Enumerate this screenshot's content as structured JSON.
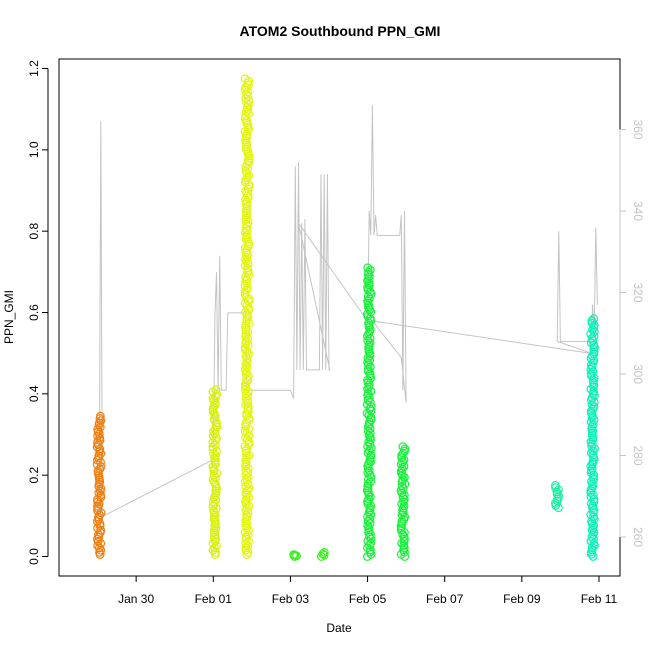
{
  "chart_data": {
    "type": "scatter",
    "title": "ATOM2 Southbound PPN_GMI",
    "xlabel": "Date",
    "ylabel": "PPN_GMI",
    "ylim": [
      0,
      1.2
    ],
    "y2lim": [
      250,
      375
    ],
    "x_start": "2019-01-28",
    "x_end": "2019-02-11",
    "x_ticks": [
      {
        "date": "2019-01-30",
        "label": "Jan 30"
      },
      {
        "date": "2019-02-01",
        "label": "Feb 01"
      },
      {
        "date": "2019-02-03",
        "label": "Feb 03"
      },
      {
        "date": "2019-02-05",
        "label": "Feb 05"
      },
      {
        "date": "2019-02-07",
        "label": "Feb 07"
      },
      {
        "date": "2019-02-09",
        "label": "Feb 09"
      },
      {
        "date": "2019-02-11",
        "label": "Feb 11"
      }
    ],
    "y_ticks": [
      {
        "value": 0.0,
        "label": "0.0"
      },
      {
        "value": 0.2,
        "label": "0.2"
      },
      {
        "value": 0.4,
        "label": "0.4"
      },
      {
        "value": 0.6,
        "label": "0.6"
      },
      {
        "value": 0.8,
        "label": "0.8"
      },
      {
        "value": 1.0,
        "label": "1.0"
      },
      {
        "value": 1.2,
        "label": "1.2"
      }
    ],
    "y2_ticks": [
      {
        "value": 260,
        "label": "260"
      },
      {
        "value": 280,
        "label": "280"
      },
      {
        "value": 300,
        "label": "300"
      },
      {
        "value": 320,
        "label": "320"
      },
      {
        "value": 340,
        "label": "340"
      },
      {
        "value": 360,
        "label": "360"
      }
    ],
    "grid": false,
    "clusters": [
      {
        "date": "2019-01-29T01:00",
        "ymin": 0.005,
        "ymax": 0.345,
        "color": "#F07D0E"
      },
      {
        "date": "2019-02-01T01:00",
        "ymin": 0.005,
        "ymax": 0.41,
        "color": "#D7F00E"
      },
      {
        "date": "2019-02-01T21:00",
        "ymin": 0.005,
        "ymax": 1.175,
        "color": "#E2F50E"
      },
      {
        "date": "2019-02-03T03:00",
        "ymin": 0.0,
        "ymax": 0.005,
        "color": "#3AF01E"
      },
      {
        "date": "2019-02-03T20:00",
        "ymin": 0.0,
        "ymax": 0.01,
        "color": "#3AF01E"
      },
      {
        "date": "2019-02-05T01:00",
        "ymin": 0.0,
        "ymax": 0.71,
        "color": "#18F03A"
      },
      {
        "date": "2019-02-05T22:00",
        "ymin": 0.0,
        "ymax": 0.27,
        "color": "#18F03A"
      },
      {
        "date": "2019-02-09T22:00",
        "ymin": 0.12,
        "ymax": 0.175,
        "color": "#18F0A0"
      },
      {
        "date": "2019-02-10T20:00",
        "ymin": 0.0,
        "ymax": 0.585,
        "color": "#0EF0B4"
      }
    ],
    "series2": {
      "name": "",
      "color": "#C4C4C4",
      "points": [
        [
          "2019-01-29T01:00",
          265
        ],
        [
          "2019-01-29T02:00",
          362
        ],
        [
          "2019-01-29T03:00",
          265
        ],
        [
          "2019-02-01T00:00",
          279
        ],
        [
          "2019-02-01T01:00",
          314
        ],
        [
          "2019-02-01T02:00",
          325
        ],
        [
          "2019-02-01T03:00",
          296
        ],
        [
          "2019-02-01T04:00",
          329
        ],
        [
          "2019-02-01T05:00",
          296
        ],
        [
          "2019-02-01T08:00",
          296
        ],
        [
          "2019-02-01T09:00",
          315
        ],
        [
          "2019-02-01T20:00",
          315
        ],
        [
          "2019-02-01T21:00",
          296
        ],
        [
          "2019-02-03T00:00",
          296
        ],
        [
          "2019-02-03T02:00",
          294
        ],
        [
          "2019-02-03T03:00",
          351
        ],
        [
          "2019-02-03T04:00",
          301
        ],
        [
          "2019-02-03T05:00",
          352
        ],
        [
          "2019-02-03T06:00",
          301
        ],
        [
          "2019-02-03T07:00",
          337
        ],
        [
          "2019-02-03T08:00",
          301
        ],
        [
          "2019-02-03T09:00",
          338
        ],
        [
          "2019-02-03T10:00",
          301
        ],
        [
          "2019-02-03T18:00",
          301
        ],
        [
          "2019-02-03T19:00",
          349
        ],
        [
          "2019-02-03T20:00",
          301
        ],
        [
          "2019-02-03T21:00",
          349
        ],
        [
          "2019-02-03T22:00",
          301
        ],
        [
          "2019-02-03T23:00",
          349
        ],
        [
          "2019-02-04T00:00",
          301
        ],
        [
          "2019-02-04T01:00",
          301
        ],
        [
          "2019-02-04T00:30",
          301
        ],
        [
          "2019-02-03T05:00",
          337
        ],
        [
          "2019-02-05T00:00",
          313
        ],
        [
          "2019-02-05T01:00",
          340
        ],
        [
          "2019-02-05T02:00",
          334
        ],
        [
          "2019-02-05T03:00",
          366
        ],
        [
          "2019-02-05T04:00",
          334
        ],
        [
          "2019-02-05T05:00",
          339
        ],
        [
          "2019-02-05T06:00",
          334
        ],
        [
          "2019-02-05T20:00",
          334
        ],
        [
          "2019-02-05T21:00",
          339
        ],
        [
          "2019-02-05T22:00",
          296
        ],
        [
          "2019-02-05T23:00",
          340
        ],
        [
          "2019-02-06T00:00",
          293
        ],
        [
          "2019-02-05T21:00",
          304
        ],
        [
          "2019-02-05T03:00",
          313
        ],
        [
          "2019-02-10T20:00",
          305
        ],
        [
          "2019-02-09T22:00",
          308
        ],
        [
          "2019-02-09T23:00",
          335
        ],
        [
          "2019-02-10T00:00",
          308
        ],
        [
          "2019-02-10T19:00",
          308
        ],
        [
          "2019-02-10T20:00",
          317
        ],
        [
          "2019-02-10T21:00",
          310
        ],
        [
          "2019-02-10T22:00",
          336
        ],
        [
          "2019-02-10T23:00",
          317
        ]
      ]
    }
  }
}
